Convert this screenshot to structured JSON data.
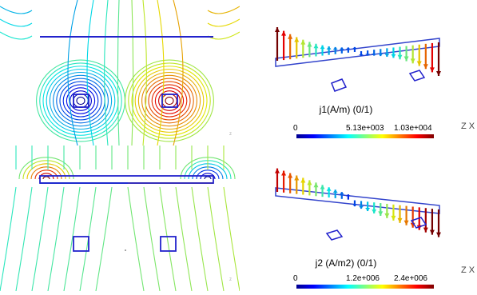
{
  "panel_top": {
    "colorbar": {
      "title": "j1(A/m) (0/1)",
      "min_label": "0",
      "mid_label": "5.13e+003",
      "max_label": "1.03e+004"
    },
    "axis_label": "Z X"
  },
  "panel_bottom": {
    "colorbar": {
      "title": "j2 (A/m2) (0/1)",
      "min_label": "0",
      "mid_label": "1.2e+006",
      "max_label": "2.4e+006"
    },
    "axis_label": "Z X"
  },
  "colors": {
    "conductor": "#2222cc",
    "arrow_blue": "#3a66dd",
    "arrow_red": "#cc2a1a"
  }
}
